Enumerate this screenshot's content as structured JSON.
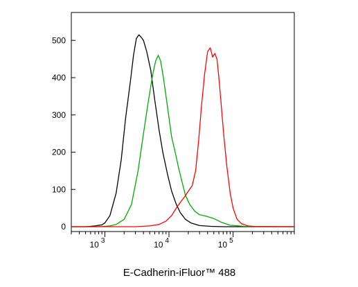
{
  "chart_data": {
    "type": "line",
    "title": "",
    "xlabel": "E-Cadherin-iFluor™ 488",
    "ylabel": "",
    "x_scale": "log",
    "xlim": [
      300,
      900000
    ],
    "ylim": [
      0,
      560
    ],
    "grid": false,
    "legend": "none",
    "y_ticks": [
      0,
      100,
      200,
      300,
      400,
      500
    ],
    "x_ticks": [
      {
        "base": "10",
        "exp": "3",
        "value": 1000
      },
      {
        "base": "10",
        "exp": "4",
        "value": 10000
      },
      {
        "base": "10",
        "exp": "5",
        "value": 100000
      }
    ],
    "series": [
      {
        "color": "#000000",
        "x": [
          300,
          500,
          700,
          900,
          1000,
          1200,
          1500,
          1800,
          2100,
          2500,
          2800,
          3100,
          3400,
          3700,
          4000,
          4500,
          5200,
          6000,
          7000,
          8000,
          9500,
          11000,
          13000,
          15000,
          18000,
          22000,
          30000,
          45000,
          70000,
          900000
        ],
        "y": [
          0,
          0,
          2,
          5,
          10,
          30,
          90,
          180,
          290,
          390,
          460,
          505,
          515,
          508,
          500,
          470,
          420,
          340,
          260,
          200,
          140,
          95,
          60,
          38,
          20,
          10,
          3,
          1,
          0,
          0
        ]
      },
      {
        "color": "#00aa00",
        "x": [
          300,
          800,
          1200,
          1500,
          2000,
          2600,
          3300,
          4000,
          4800,
          5600,
          6200,
          6800,
          7400,
          8200,
          9500,
          11000,
          12500,
          14000,
          16000,
          18000,
          21000,
          25000,
          30000,
          38000,
          50000,
          65000,
          90000,
          150000,
          900000
        ],
        "y": [
          0,
          0,
          2,
          6,
          20,
          60,
          150,
          250,
          340,
          410,
          445,
          460,
          445,
          400,
          320,
          240,
          200,
          160,
          120,
          85,
          60,
          42,
          32,
          28,
          22,
          12,
          4,
          1,
          0
        ]
      },
      {
        "color": "#ff0000",
        "x": [
          300,
          3000,
          5000,
          7000,
          9000,
          11000,
          13000,
          15000,
          17500,
          20000,
          23000,
          26000,
          29000,
          32000,
          36000,
          40000,
          44000,
          48000,
          52000,
          56000,
          60000,
          65000,
          72000,
          80000,
          90000,
          100000,
          115000,
          135000,
          170000,
          250000,
          900000
        ],
        "y": [
          0,
          0,
          2,
          6,
          15,
          30,
          50,
          65,
          80,
          95,
          110,
          150,
          230,
          320,
          410,
          470,
          480,
          455,
          465,
          450,
          400,
          330,
          240,
          160,
          90,
          50,
          20,
          8,
          2,
          0,
          0
        ]
      }
    ]
  }
}
